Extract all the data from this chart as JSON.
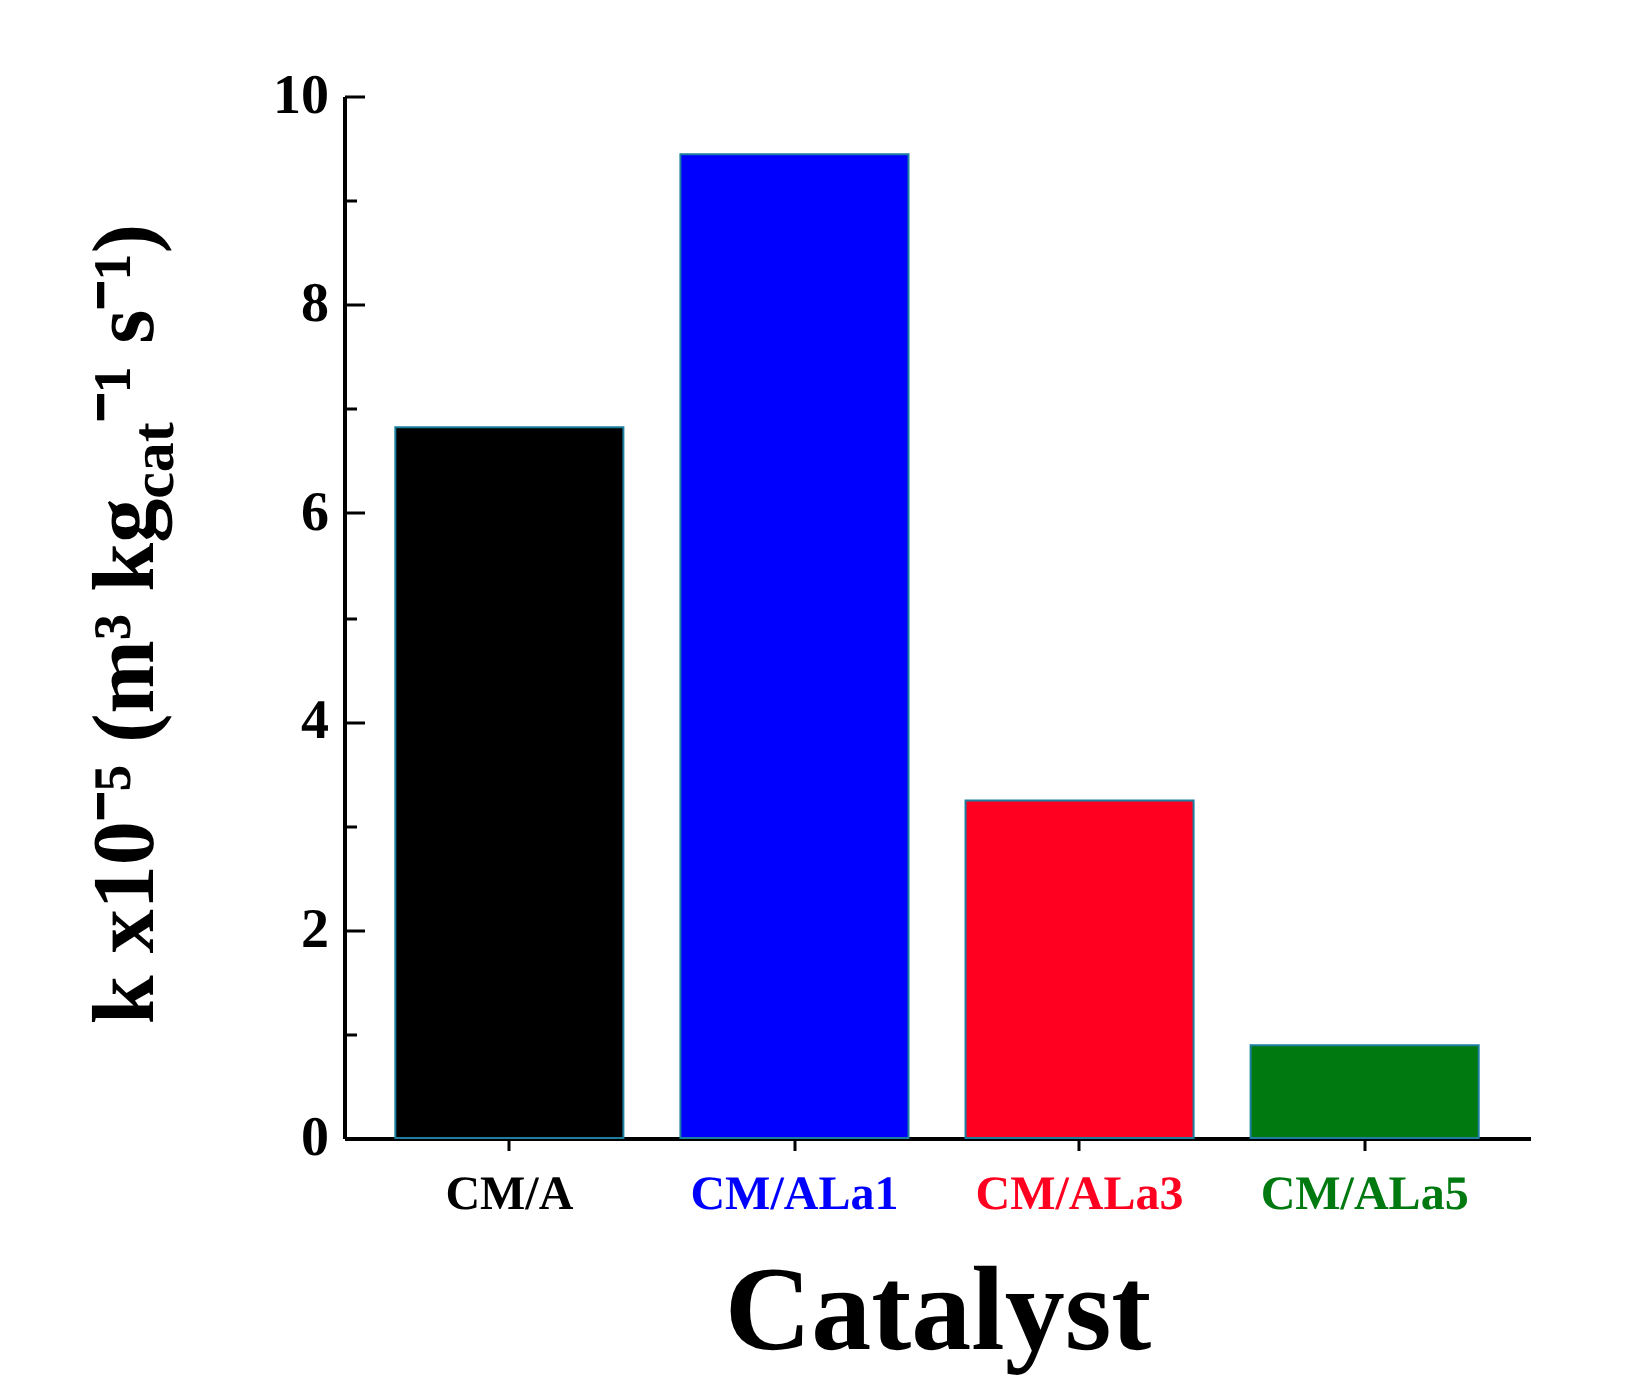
{
  "chart_data": {
    "type": "bar",
    "xlabel": "Catalyst",
    "ylabel": "k x10⁻⁵ (m³ kg$_{cat}$⁻¹ s⁻¹)",
    "categories": [
      "CM/A",
      "CM/ALa1",
      "CM/ALa3",
      "CM/ALa5"
    ],
    "values": [
      6.82,
      9.44,
      3.24,
      0.89
    ],
    "colors": [
      "#000000",
      "#0000ff",
      "#ff0021",
      "#007a10"
    ],
    "ylim": [
      0,
      10
    ],
    "yticks": [
      0,
      {
        "value": 1,
        "label": null
      },
      2,
      {
        "value": 3,
        "label": null
      },
      4,
      {
        "value": 5,
        "label": null
      },
      6,
      {
        "value": 7,
        "label": null
      },
      8,
      {
        "value": 9,
        "label": null
      },
      10
    ],
    "grid": false
  }
}
